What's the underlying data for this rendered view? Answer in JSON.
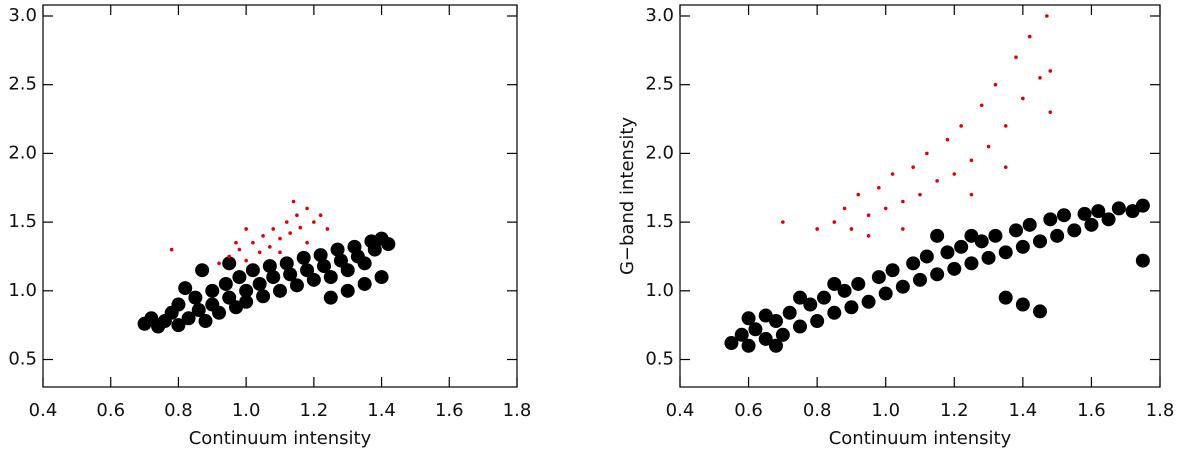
{
  "chart_data": [
    {
      "type": "scatter",
      "xlabel": "Continuum intensity",
      "xlim": [
        0.4,
        1.8
      ],
      "ylim": [
        0.3,
        3.08
      ],
      "xticks": [
        0.4,
        0.6,
        0.8,
        {
          "value": 1,
          "label": "1.0"
        },
        1.2,
        1.4,
        1.6,
        1.8
      ],
      "yticks": [
        0.5,
        {
          "value": 1,
          "label": "1.0"
        },
        1.5,
        {
          "value": 2,
          "label": "2.0"
        },
        2.5,
        {
          "value": 3,
          "label": "3.0"
        }
      ],
      "series": [
        {
          "color": "#000000",
          "x": [
            0.7,
            0.72,
            0.74,
            0.76,
            0.78,
            0.8,
            0.8,
            0.83,
            0.85,
            0.86,
            0.88,
            0.9,
            0.9,
            0.92,
            0.94,
            0.95,
            0.97,
            0.98,
            1.0,
            1.0,
            1.02,
            1.04,
            1.05,
            1.07,
            1.08,
            1.1,
            1.12,
            1.13,
            1.15,
            1.17,
            1.18,
            1.2,
            1.22,
            1.23,
            1.25,
            1.27,
            1.28,
            1.3,
            1.32,
            1.33,
            1.35,
            1.37,
            1.38,
            1.4,
            1.42,
            1.4,
            1.35,
            1.3,
            1.25,
            0.87,
            0.95,
            0.82
          ],
          "values": [
            0.76,
            0.8,
            0.74,
            0.78,
            0.84,
            0.75,
            0.9,
            0.8,
            0.95,
            0.86,
            0.78,
            1.0,
            0.9,
            0.84,
            1.05,
            0.95,
            0.88,
            1.1,
            1.0,
            0.92,
            1.15,
            1.05,
            0.96,
            1.18,
            1.1,
            1.0,
            1.2,
            1.12,
            1.04,
            1.24,
            1.15,
            1.08,
            1.26,
            1.18,
            1.1,
            1.3,
            1.22,
            1.15,
            1.32,
            1.25,
            1.2,
            1.36,
            1.3,
            1.38,
            1.34,
            1.1,
            1.05,
            1.0,
            0.95,
            1.15,
            1.2,
            1.02
          ]
        },
        {
          "color": "#e00000",
          "x": [
            0.92,
            0.95,
            0.98,
            1.0,
            1.02,
            1.04,
            1.05,
            1.07,
            1.08,
            1.1,
            1.12,
            1.13,
            1.15,
            1.16,
            1.18,
            1.2,
            1.14,
            1.22,
            1.0,
            0.97,
            0.78,
            1.1,
            1.18,
            1.24
          ],
          "values": [
            1.2,
            1.25,
            1.3,
            1.22,
            1.35,
            1.28,
            1.4,
            1.32,
            1.45,
            1.38,
            1.5,
            1.42,
            1.55,
            1.46,
            1.6,
            1.5,
            1.65,
            1.55,
            1.45,
            1.35,
            1.3,
            1.28,
            1.35,
            1.45
          ]
        }
      ]
    },
    {
      "type": "scatter",
      "xlabel": "Continuum intensity",
      "ylabel": "G−band intensity",
      "xlim": [
        0.4,
        1.8
      ],
      "ylim": [
        0.3,
        3.08
      ],
      "xticks": [
        0.4,
        0.6,
        0.8,
        {
          "value": 1,
          "label": "1.0"
        },
        1.2,
        1.4,
        1.6,
        1.8
      ],
      "yticks": [
        0.5,
        {
          "value": 1,
          "label": "1.0"
        },
        1.5,
        {
          "value": 2,
          "label": "2.0"
        },
        2.5,
        {
          "value": 3,
          "label": "3.0"
        }
      ],
      "series": [
        {
          "color": "#000000",
          "x": [
            0.55,
            0.58,
            0.6,
            0.62,
            0.65,
            0.68,
            0.7,
            0.72,
            0.75,
            0.78,
            0.8,
            0.82,
            0.85,
            0.88,
            0.9,
            0.92,
            0.95,
            0.98,
            1.0,
            1.02,
            1.05,
            1.08,
            1.1,
            1.12,
            1.15,
            1.18,
            1.2,
            1.22,
            1.25,
            1.28,
            1.3,
            1.32,
            1.35,
            1.38,
            1.4,
            1.42,
            1.45,
            1.48,
            1.5,
            1.52,
            1.55,
            1.58,
            1.6,
            1.62,
            1.65,
            1.68,
            1.72,
            1.75,
            0.65,
            0.75,
            0.6,
            0.68,
            0.85,
            1.4,
            1.45,
            1.35,
            1.25,
            1.15,
            1.75
          ],
          "values": [
            0.62,
            0.68,
            0.6,
            0.72,
            0.65,
            0.78,
            0.68,
            0.84,
            0.74,
            0.9,
            0.78,
            0.95,
            0.84,
            1.0,
            0.88,
            1.05,
            0.92,
            1.1,
            0.98,
            1.15,
            1.03,
            1.2,
            1.08,
            1.25,
            1.12,
            1.28,
            1.16,
            1.32,
            1.2,
            1.36,
            1.24,
            1.4,
            1.28,
            1.44,
            1.32,
            1.48,
            1.36,
            1.52,
            1.4,
            1.55,
            1.44,
            1.56,
            1.48,
            1.58,
            1.52,
            1.6,
            1.58,
            1.62,
            0.82,
            0.95,
            0.8,
            0.6,
            1.05,
            0.9,
            0.85,
            0.95,
            1.4,
            1.4,
            1.22
          ]
        },
        {
          "color": "#e00000",
          "x": [
            0.7,
            0.8,
            0.85,
            0.88,
            0.9,
            0.92,
            0.95,
            0.98,
            1.0,
            1.02,
            1.05,
            1.08,
            1.1,
            1.12,
            1.15,
            1.18,
            1.2,
            1.22,
            1.25,
            1.28,
            1.3,
            1.32,
            1.35,
            1.38,
            1.4,
            1.42,
            1.45,
            1.47,
            1.48,
            1.05,
            0.95,
            1.25,
            1.35,
            1.48
          ],
          "values": [
            1.5,
            1.45,
            1.5,
            1.6,
            1.45,
            1.7,
            1.55,
            1.75,
            1.6,
            1.85,
            1.65,
            1.9,
            1.7,
            2.0,
            1.8,
            2.1,
            1.85,
            2.2,
            1.95,
            2.35,
            2.05,
            2.5,
            2.2,
            2.7,
            2.4,
            2.85,
            2.55,
            3.0,
            2.3,
            1.45,
            1.4,
            1.7,
            1.9,
            2.6
          ]
        }
      ]
    }
  ]
}
